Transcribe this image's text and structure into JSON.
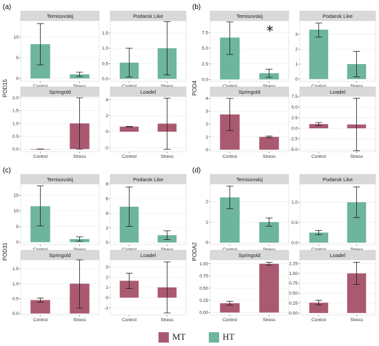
{
  "colors": {
    "MT": "#AA5A70",
    "HT": "#6DB59C",
    "strip_bg": "#D9D9D9",
    "grid": "#EBEBEB",
    "axis": "#555555"
  },
  "legend": [
    {
      "label": "MT",
      "color": "#AA5A70"
    },
    {
      "label": "HT",
      "color": "#6DB59C"
    }
  ],
  "chart_data": [
    {
      "panel": "(a)",
      "ylabel": "POD15",
      "label": "(a)",
      "type": "bar",
      "facets": [
        {
          "name": "Temisovskij",
          "group": "HT",
          "categories": [
            "Control",
            "Stress"
          ],
          "values": [
            8.3,
            1.0
          ],
          "err_low": [
            3.3,
            0.5
          ],
          "err_high": [
            13.3,
            1.5
          ],
          "ylim": [
            -0.7,
            14.0
          ],
          "yticks": [
            0,
            5,
            10
          ]
        },
        {
          "name": "Podarok Like",
          "group": "HT",
          "categories": [
            "Control",
            "Stress"
          ],
          "values": [
            0.53,
            1.0
          ],
          "err_low": [
            0.06,
            0.13
          ],
          "err_high": [
            1.0,
            1.87
          ],
          "ylim": [
            -0.08,
            1.9
          ],
          "yticks": [
            0.0,
            0.5,
            1.0,
            1.5
          ],
          "ytick_labels": [
            "0.0",
            "0.5",
            "1.0",
            "1.5"
          ]
        },
        {
          "name": "Springold",
          "group": "MT",
          "categories": [
            "Control",
            "Stress"
          ],
          "values": [
            0.0,
            1.0
          ],
          "err_low": [
            0.0,
            0.0
          ],
          "err_high": [
            0.0,
            2.0
          ],
          "ylim": [
            -0.1,
            2.05
          ],
          "yticks": [
            0.0,
            0.5,
            1.0,
            1.5,
            2.0
          ],
          "ytick_labels": [
            "0.0",
            "0.5",
            "1.0",
            "1.5",
            "2.0"
          ]
        },
        {
          "name": "Loadel",
          "group": "MT",
          "categories": [
            "Control",
            "Stress"
          ],
          "values": [
            0.63,
            1.0
          ],
          "err_low": [
            0.6,
            -2.2
          ],
          "err_high": [
            0.66,
            4.2
          ],
          "ylim": [
            -2.5,
            4.4
          ],
          "yticks": [
            -2,
            0,
            2,
            4
          ]
        }
      ]
    },
    {
      "panel": "(b)",
      "ylabel": "POD4",
      "label": "(b)",
      "type": "bar",
      "annotation": "*",
      "facets": [
        {
          "name": "Temisovskij",
          "group": "HT",
          "categories": [
            "Control",
            "Stress"
          ],
          "values": [
            6.7,
            1.0
          ],
          "err_low": [
            4.0,
            0.35
          ],
          "err_high": [
            9.2,
            1.65
          ],
          "ylim": [
            -0.3,
            9.4
          ],
          "yticks": [
            0.0,
            2.5,
            5.0,
            7.5
          ],
          "ytick_labels": [
            "0.0",
            "2.5",
            "5.0",
            "7.5"
          ]
        },
        {
          "name": "Podarok Like",
          "group": "HT",
          "categories": [
            "Control",
            "Stress"
          ],
          "values": [
            3.3,
            1.0
          ],
          "err_low": [
            2.8,
            0.15
          ],
          "err_high": [
            3.75,
            1.85
          ],
          "ylim": [
            -0.15,
            3.9
          ],
          "yticks": [
            0,
            1,
            2,
            3
          ]
        },
        {
          "name": "Springold",
          "group": "MT",
          "categories": [
            "Control",
            "Stress"
          ],
          "values": [
            2.75,
            1.0
          ],
          "err_low": [
            1.5,
            0.93
          ],
          "err_high": [
            4.0,
            1.07
          ],
          "ylim": [
            -0.15,
            4.15
          ],
          "yticks": [
            0,
            1,
            2,
            3,
            4
          ]
        },
        {
          "name": "Loadel",
          "group": "MT",
          "categories": [
            "Control",
            "Stress"
          ],
          "values": [
            1.0,
            0.9
          ],
          "err_low": [
            0.65,
            -5.3
          ],
          "err_high": [
            1.35,
            7.1
          ],
          "ylim": [
            -5.5,
            7.5
          ],
          "yticks": [
            -5.0,
            -2.5,
            0.0,
            2.5,
            5.0,
            7.5
          ],
          "ytick_labels": [
            "-5.0",
            "-2.5",
            "0.0",
            "2.5",
            "5.0",
            "7.5"
          ]
        }
      ]
    },
    {
      "panel": "(c)",
      "ylabel": "POD31",
      "label": "(c)",
      "type": "bar",
      "facets": [
        {
          "name": "Temisovskij",
          "group": "HT",
          "categories": [
            "Control",
            "Stress"
          ],
          "values": [
            11.5,
            1.0
          ],
          "err_low": [
            5.2,
            0.3
          ],
          "err_high": [
            18.0,
            1.7
          ],
          "ylim": [
            -0.8,
            18.6
          ],
          "yticks": [
            0,
            5,
            10,
            15
          ]
        },
        {
          "name": "Podarok Like",
          "group": "HT",
          "categories": [
            "Control",
            "Stress"
          ],
          "values": [
            4.9,
            1.0
          ],
          "err_low": [
            2.2,
            0.4
          ],
          "err_high": [
            7.6,
            1.6
          ],
          "ylim": [
            -0.3,
            8.0
          ],
          "yticks": [
            0,
            2,
            4,
            6,
            8
          ]
        },
        {
          "name": "Springold",
          "group": "MT",
          "categories": [
            "Control",
            "Stress"
          ],
          "values": [
            0.45,
            1.0
          ],
          "err_low": [
            0.38,
            0.18
          ],
          "err_high": [
            0.52,
            1.8
          ],
          "ylim": [
            -0.05,
            1.8
          ],
          "yticks": [
            0.0,
            0.5,
            1.0,
            1.5
          ],
          "ytick_labels": [
            "0.0",
            "0.5",
            "1.0",
            "1.5"
          ]
        },
        {
          "name": "Loadel",
          "group": "MT",
          "categories": [
            "Control",
            "Stress"
          ],
          "values": [
            1.65,
            1.0
          ],
          "err_low": [
            0.9,
            -1.5
          ],
          "err_high": [
            2.4,
            3.5
          ],
          "ylim": [
            -1.7,
            3.7
          ],
          "yticks": [
            -1,
            0,
            1,
            2,
            3
          ]
        }
      ]
    },
    {
      "panel": "(d)",
      "ylabel": "PODA2",
      "label": "(d)",
      "type": "bar",
      "facets": [
        {
          "name": "Temisovskij",
          "group": "HT",
          "categories": [
            "Control",
            "Stress"
          ],
          "values": [
            2.2,
            1.0
          ],
          "err_low": [
            1.65,
            0.8
          ],
          "err_high": [
            2.75,
            1.2
          ],
          "ylim": [
            -0.1,
            2.85
          ],
          "yticks": [
            0,
            1,
            2
          ]
        },
        {
          "name": "Podarok Like",
          "group": "HT",
          "categories": [
            "Control",
            "Stress"
          ],
          "values": [
            0.25,
            1.0
          ],
          "err_low": [
            0.2,
            0.62
          ],
          "err_high": [
            0.3,
            1.38
          ],
          "ylim": [
            -0.05,
            1.45
          ],
          "yticks": [
            0.0,
            0.5,
            1.0
          ],
          "ytick_labels": [
            "0.0",
            "0.5",
            "1.0"
          ]
        },
        {
          "name": "Springold",
          "group": "MT",
          "categories": [
            "Control",
            "Stress"
          ],
          "values": [
            0.19,
            1.0
          ],
          "err_low": [
            0.15,
            0.97
          ],
          "err_high": [
            0.23,
            1.03
          ],
          "ylim": [
            -0.05,
            1.08
          ],
          "yticks": [
            0.0,
            0.25,
            0.5,
            0.75,
            1.0
          ],
          "ytick_labels": [
            "0.00",
            "0.25",
            "0.50",
            "0.75",
            "1.00"
          ]
        },
        {
          "name": "Loadel",
          "group": "MT",
          "categories": [
            "Control",
            "Stress"
          ],
          "values": [
            0.26,
            1.0
          ],
          "err_low": [
            0.2,
            0.72
          ],
          "err_high": [
            0.32,
            1.28
          ],
          "ylim": [
            -0.05,
            1.34
          ],
          "yticks": [
            0.0,
            0.25,
            0.5,
            0.75,
            1.0,
            1.25
          ],
          "ytick_labels": [
            "0.00",
            "0.25",
            "0.50",
            "0.75",
            "1.00",
            "1.25"
          ]
        }
      ]
    }
  ]
}
